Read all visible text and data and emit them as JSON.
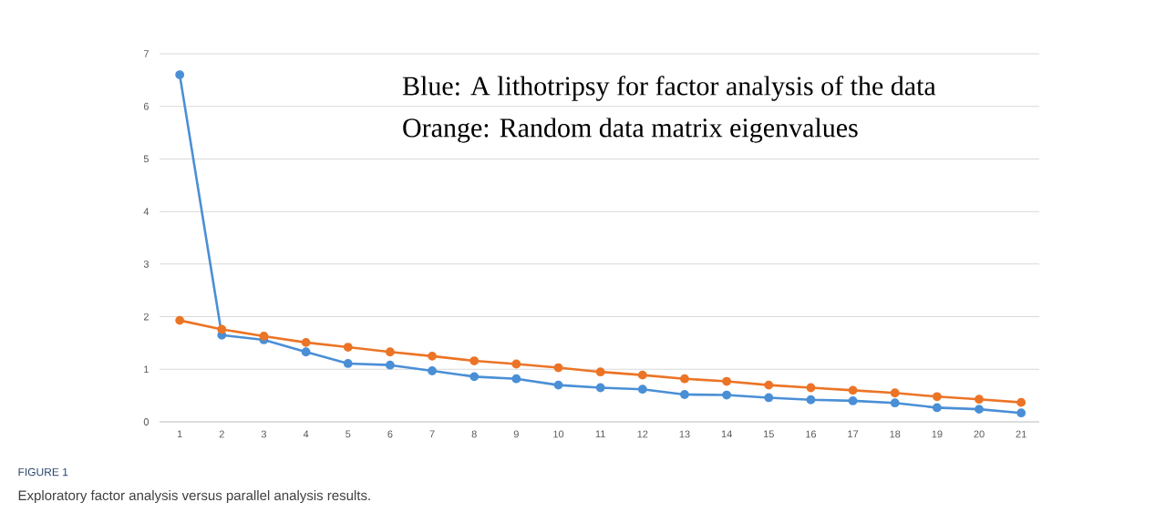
{
  "chart_data": {
    "type": "line",
    "title": "FIGURE 1",
    "subtitle": "Exploratory factor analysis versus parallel analysis results.",
    "annotations": [
      "Blue: A lithotripsy for factor analysis of the data",
      "Orange: Random data matrix eigenvalues"
    ],
    "categories": [
      "1",
      "2",
      "3",
      "4",
      "5",
      "6",
      "7",
      "8",
      "9",
      "10",
      "11",
      "12",
      "13",
      "14",
      "15",
      "16",
      "17",
      "18",
      "19",
      "20",
      "21"
    ],
    "series": [
      {
        "color": "#4a8fd6",
        "values": [
          6.6,
          1.65,
          1.56,
          1.33,
          1.11,
          1.08,
          0.97,
          0.86,
          0.82,
          0.7,
          0.65,
          0.62,
          0.52,
          0.51,
          0.46,
          0.42,
          0.4,
          0.36,
          0.27,
          0.24,
          0.17
        ]
      },
      {
        "color": "#ec7426",
        "values": [
          1.93,
          1.76,
          1.63,
          1.51,
          1.42,
          1.33,
          1.25,
          1.16,
          1.1,
          1.03,
          0.95,
          0.89,
          0.82,
          0.77,
          0.7,
          0.65,
          0.6,
          0.55,
          0.48,
          0.43,
          0.37
        ]
      }
    ],
    "ylim": [
      0,
      7
    ],
    "yticks": [
      0,
      1,
      2,
      3,
      4,
      5,
      6,
      7
    ],
    "grid": "y",
    "marker": "circle",
    "line_style": "solid"
  }
}
